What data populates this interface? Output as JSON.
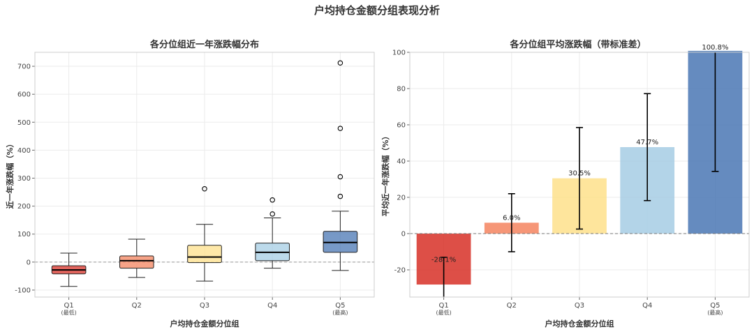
{
  "figure": {
    "title": "户均持仓金额分组表现分析"
  },
  "chart_data": [
    {
      "type": "box",
      "title": "各分位组近一年涨跌幅分布",
      "xlabel": "户均持仓金额分位组",
      "ylabel": "近一年涨跌幅（%）",
      "ylim": [
        -125,
        750
      ],
      "yticks": [
        -100,
        0,
        100,
        200,
        300,
        400,
        500,
        600,
        700
      ],
      "categories": [
        "Q1",
        "Q2",
        "Q3",
        "Q4",
        "Q5"
      ],
      "category_sublabels": [
        "(最低)",
        "",
        "",
        "",
        "(最高)"
      ],
      "colors": [
        "#d73027",
        "#f4845f",
        "#fee08b",
        "#a6cde4",
        "#4a77b4"
      ],
      "boxes": [
        {
          "whisker_low": -87,
          "q1": -42,
          "median": -28,
          "q3": -13,
          "whisker_high": 32,
          "outliers": []
        },
        {
          "whisker_low": -55,
          "q1": -22,
          "median": 5,
          "q3": 22,
          "whisker_high": 82,
          "outliers": []
        },
        {
          "whisker_low": -68,
          "q1": -2,
          "median": 18,
          "q3": 60,
          "whisker_high": 135,
          "outliers": [
            262
          ]
        },
        {
          "whisker_low": -22,
          "q1": 5,
          "median": 35,
          "q3": 68,
          "whisker_high": 158,
          "outliers": [
            172,
            222
          ]
        },
        {
          "whisker_low": -30,
          "q1": 35,
          "median": 70,
          "q3": 110,
          "whisker_high": 182,
          "outliers": [
            235,
            305,
            478,
            712
          ]
        }
      ],
      "reference_line": 0,
      "grid": true
    },
    {
      "type": "bar",
      "title": "各分位组平均涨跌幅（带标准差）",
      "xlabel": "户均持仓金额分位组",
      "ylabel": "平均近一年涨跌幅（%）",
      "ylim": [
        -35,
        100
      ],
      "yticks": [
        -20,
        0,
        20,
        40,
        60,
        80,
        100
      ],
      "categories": [
        "Q1",
        "Q2",
        "Q3",
        "Q4",
        "Q5"
      ],
      "category_sublabels": [
        "(最低)",
        "",
        "",
        "",
        "(最高)"
      ],
      "colors": [
        "#d73027",
        "#f4845f",
        "#fee08b",
        "#a6cde4",
        "#4a77b4"
      ],
      "values": [
        -28.1,
        6.0,
        30.5,
        47.7,
        100.8
      ],
      "value_labels": [
        "-28.1%",
        "6.0%",
        "30.5%",
        "47.7%",
        "100.8%"
      ],
      "std": [
        15.0,
        16.0,
        28.0,
        29.5,
        66.5
      ],
      "reference_line": 0,
      "grid": true
    }
  ]
}
